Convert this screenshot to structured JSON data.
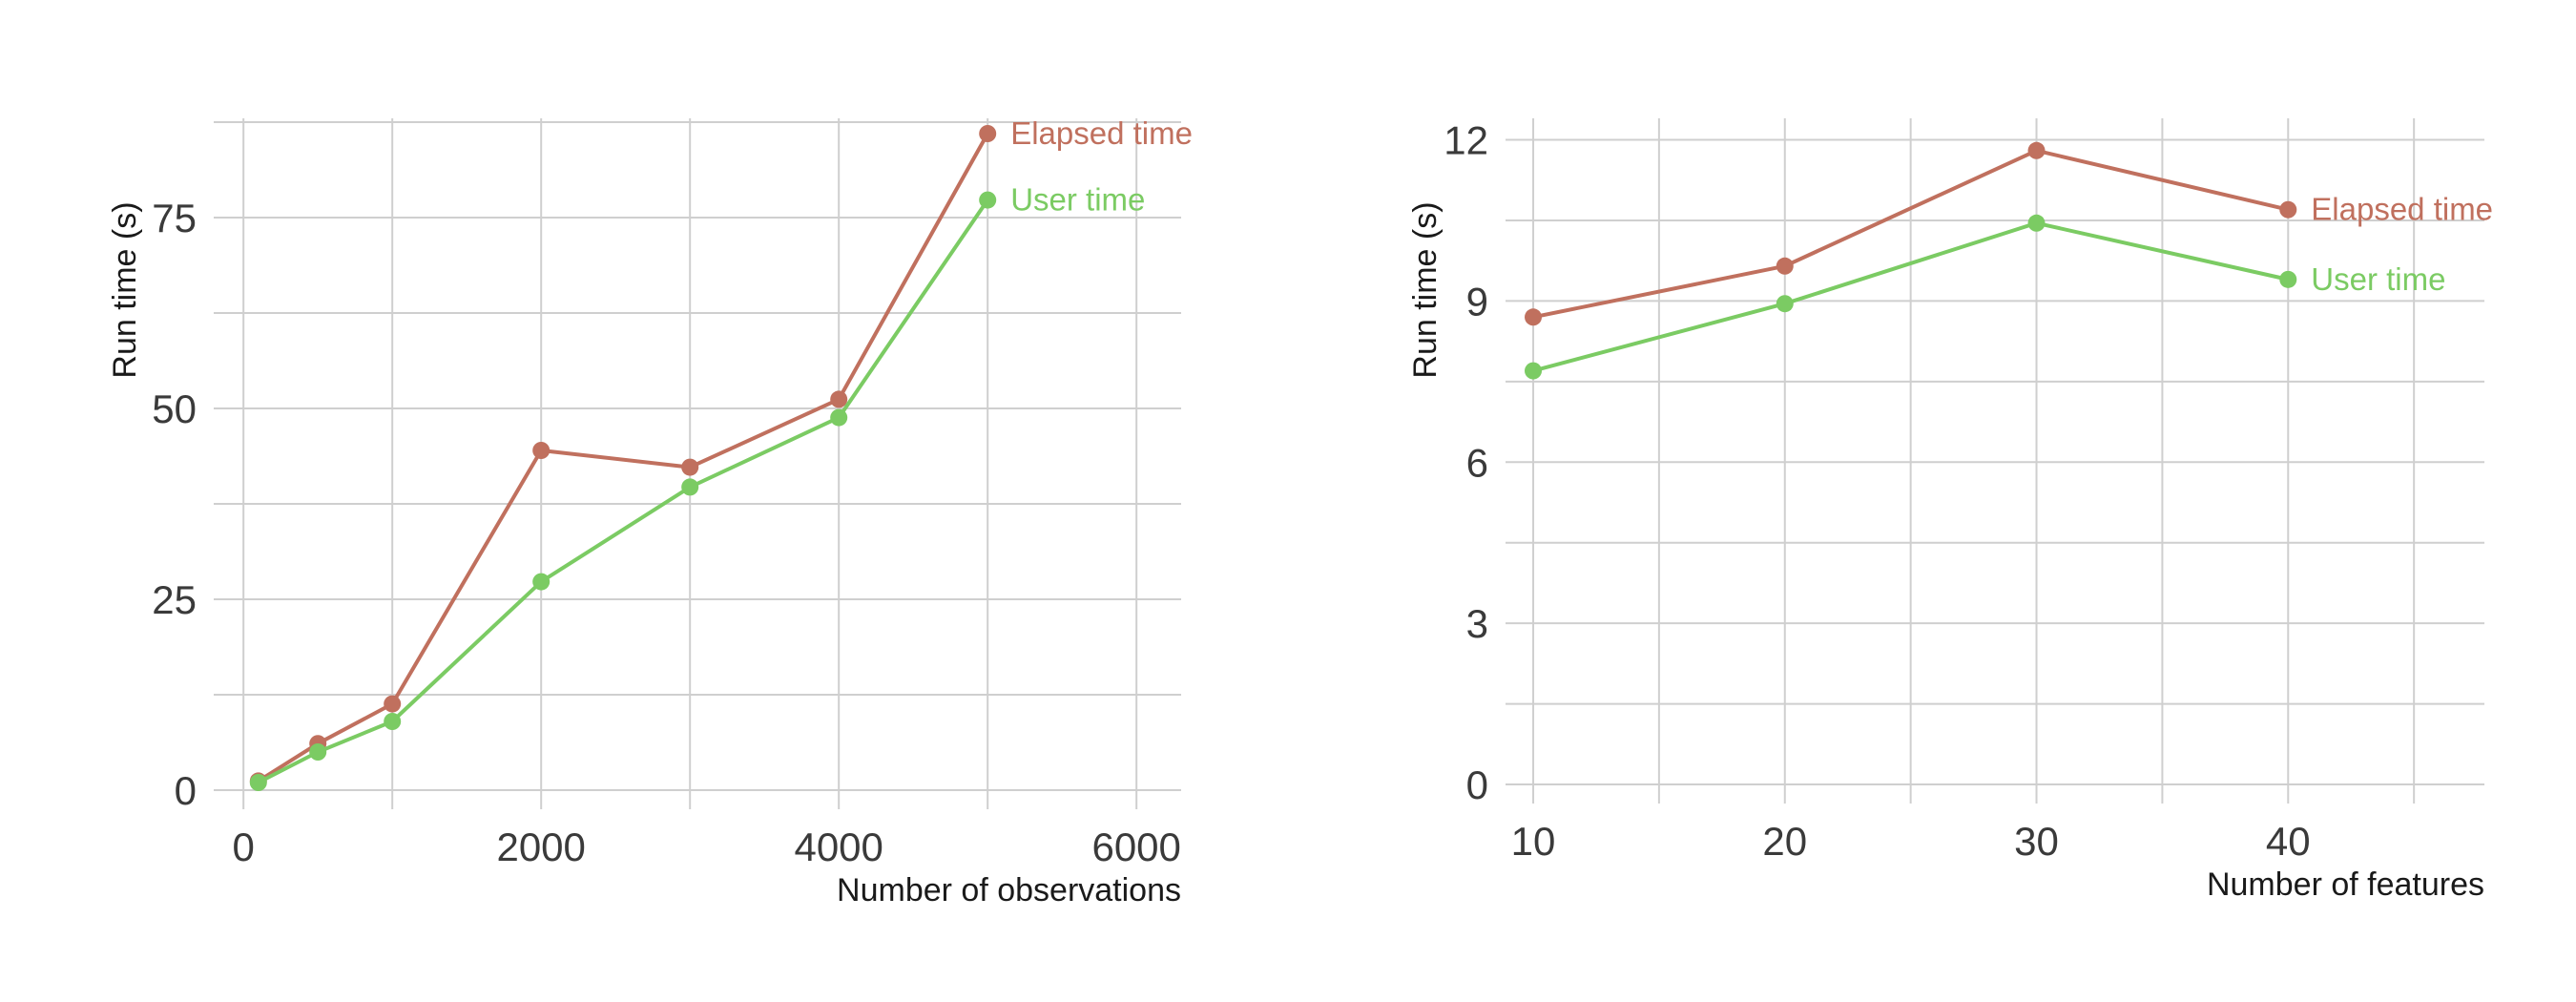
{
  "chart_data": [
    {
      "type": "line",
      "xlabel": "Number of observations",
      "ylabel": "Run time (s)",
      "xlim": [
        -200,
        6300
      ],
      "ylim": [
        0,
        88
      ],
      "xticks": [
        0,
        2000,
        4000,
        6000
      ],
      "yticks": [
        0,
        25,
        50,
        75
      ],
      "xgrid": [
        0,
        1000,
        2000,
        3000,
        4000,
        5000,
        6000
      ],
      "ygrid": [
        0,
        12.5,
        25,
        37.5,
        50,
        62.5,
        75,
        87.5
      ],
      "grid": true,
      "legend": "direct labels at line ends",
      "series": [
        {
          "name": "Elapsed time",
          "color": "#c0705e",
          "x": [
            100,
            500,
            1000,
            2000,
            3000,
            4000,
            5000
          ],
          "y": [
            1.2,
            6.1,
            11.3,
            44.5,
            42.3,
            51.2,
            86.0
          ]
        },
        {
          "name": "User time",
          "color": "#7bcb63",
          "x": [
            100,
            500,
            1000,
            2000,
            3000,
            4000,
            5000
          ],
          "y": [
            1.0,
            5.0,
            9.0,
            27.3,
            39.7,
            48.8,
            77.3
          ]
        }
      ]
    },
    {
      "type": "line",
      "xlabel": "Number of features",
      "ylabel": "Run time (s)",
      "xlim": [
        8.9,
        47.8
      ],
      "ylim": [
        0,
        12.4
      ],
      "xticks": [
        10,
        20,
        30,
        40
      ],
      "yticks": [
        0,
        3,
        6,
        9,
        12
      ],
      "xgrid": [
        10,
        15,
        20,
        25,
        30,
        35,
        40,
        45
      ],
      "ygrid": [
        0,
        1.5,
        3,
        4.5,
        6,
        7.5,
        9,
        10.5,
        12
      ],
      "grid": true,
      "legend": "direct labels at line ends",
      "series": [
        {
          "name": "Elapsed time",
          "color": "#c0705e",
          "x": [
            10,
            20,
            30,
            40
          ],
          "y": [
            8.7,
            9.65,
            11.8,
            10.7
          ]
        },
        {
          "name": "User time",
          "color": "#7bcb63",
          "x": [
            10,
            20,
            30,
            40
          ],
          "y": [
            7.7,
            8.95,
            10.45,
            9.4
          ]
        }
      ]
    }
  ]
}
